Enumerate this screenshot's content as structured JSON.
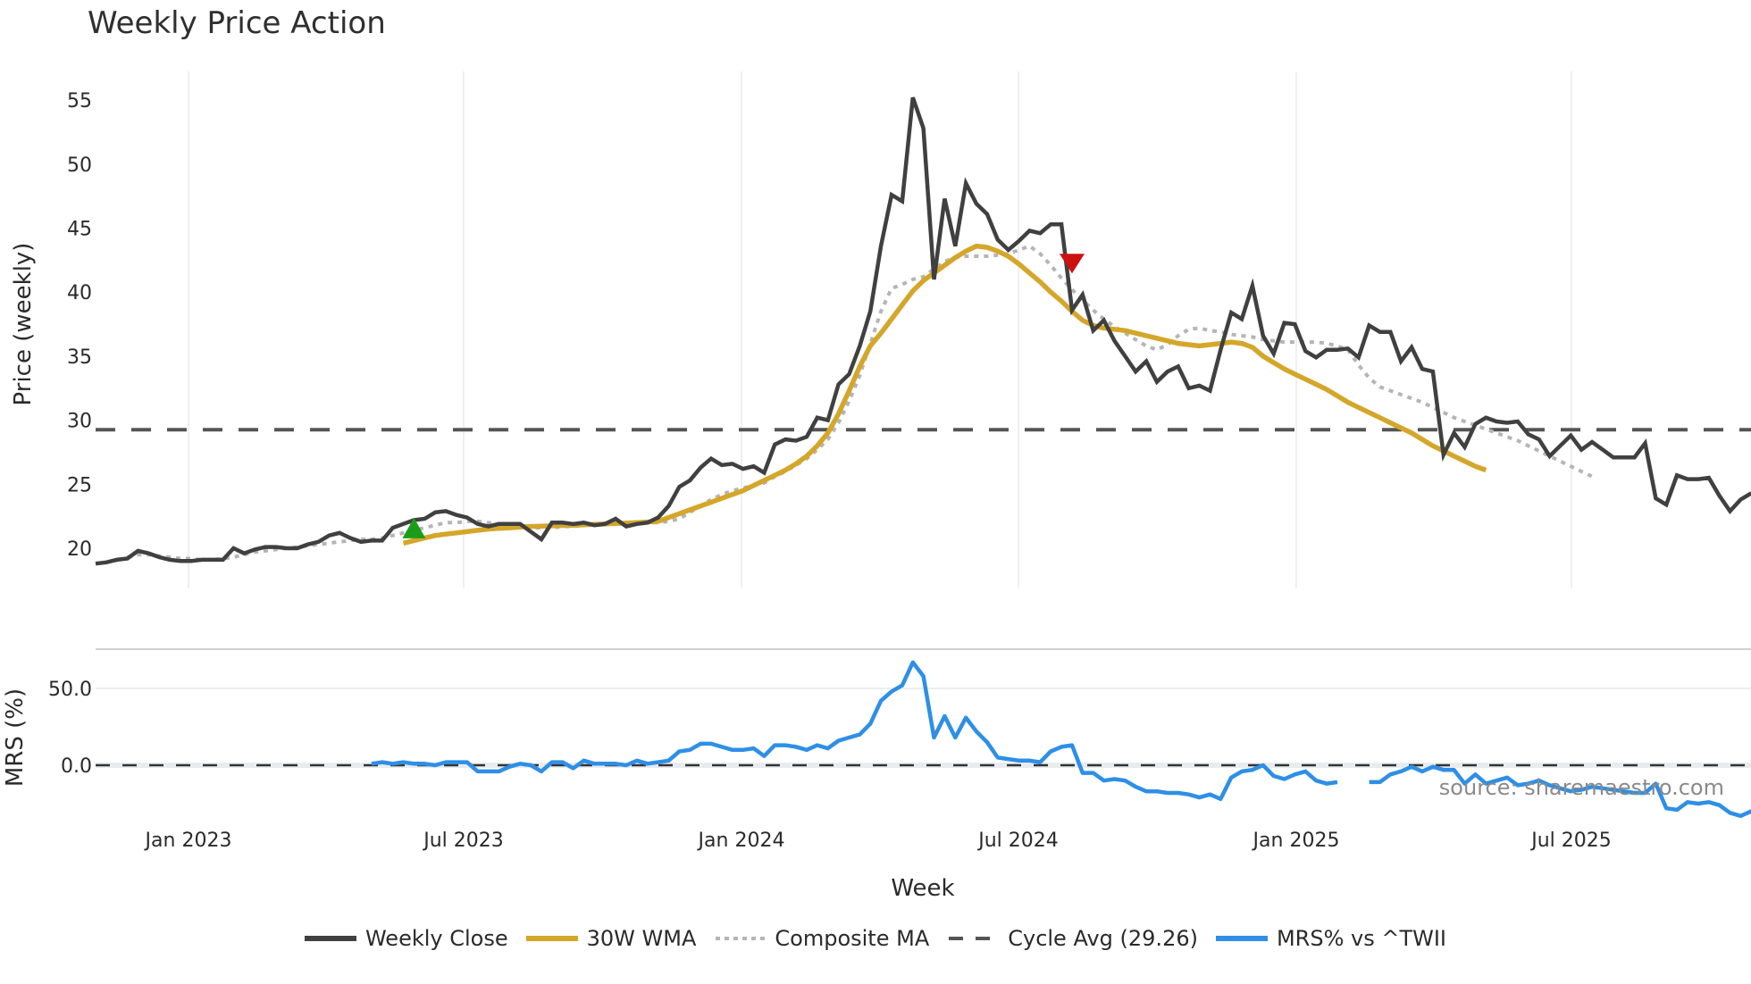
{
  "title": "Weekly Price Action",
  "legend": [
    {
      "label": "Weekly Close",
      "color": "#404040",
      "style": "solid"
    },
    {
      "label": "30W WMA",
      "color": "#d4a62a",
      "style": "solid"
    },
    {
      "label": "Composite MA",
      "color": "#b5b5b5",
      "style": "dotted"
    },
    {
      "label": "Cycle Avg (29.26)",
      "color": "#555555",
      "style": "dashed"
    },
    {
      "label": "MRS% vs ^TWII",
      "color": "#2e8fe6",
      "style": "solid"
    }
  ],
  "source_label": "source: sharemaestro.com",
  "chart_data": [
    {
      "type": "line",
      "title": "Weekly Price Action",
      "xlabel": "Week",
      "ylabel": "Price (weekly)",
      "ylim": [
        16.5,
        57
      ],
      "yticks": [
        20,
        25,
        30,
        35,
        40,
        45,
        50,
        55
      ],
      "xticks": [
        "Jan 2023",
        "Jul 2023",
        "Jan 2024",
        "Jul 2024",
        "Jan 2025",
        "Jul 2025"
      ],
      "grid": "vertical",
      "legend_position": "bottom",
      "cycle_avg": 29.26,
      "x_start_week_offset_from_jan2023": -9,
      "series": [
        {
          "name": "Weekly Close",
          "start_index": 0,
          "values": [
            18.8,
            18.9,
            19.1,
            19.2,
            19.8,
            19.6,
            19.3,
            19.1,
            19.0,
            19.0,
            19.1,
            19.1,
            19.1,
            20.0,
            19.6,
            19.9,
            20.1,
            20.1,
            20.0,
            20.0,
            20.3,
            20.5,
            21.0,
            21.2,
            20.8,
            20.5,
            20.6,
            20.6,
            21.6,
            21.9,
            22.2,
            22.3,
            22.8,
            22.9,
            22.6,
            22.4,
            21.9,
            21.7,
            21.9,
            21.9,
            21.9,
            21.3,
            20.7,
            22.0,
            22.0,
            21.9,
            22.0,
            21.8,
            21.9,
            22.3,
            21.7,
            21.9,
            22.0,
            22.4,
            23.3,
            24.8,
            25.3,
            26.3,
            27.0,
            26.5,
            26.6,
            26.2,
            26.4,
            25.9,
            28.1,
            28.5,
            28.4,
            28.7,
            30.2,
            30.0,
            32.8,
            33.6,
            35.8,
            38.5,
            43.6,
            47.6,
            47.1,
            55.2,
            52.8,
            41.0,
            47.3,
            43.6,
            48.5,
            46.9,
            46.1,
            44.1,
            43.3,
            44.0,
            44.8,
            44.6,
            45.3,
            45.3,
            38.6,
            39.8,
            37.0,
            37.8,
            36.2,
            35.0,
            33.8,
            34.6,
            33.0,
            33.8,
            34.2,
            32.5,
            32.7,
            32.3,
            35.5,
            38.4,
            37.9,
            40.5,
            36.6,
            35.2,
            37.6,
            37.5,
            35.4,
            34.9,
            35.5,
            35.5,
            35.6,
            34.9,
            37.4,
            36.9,
            36.9,
            34.6,
            35.7,
            34.0,
            33.8,
            27.3,
            29.0,
            27.9,
            29.7,
            30.2,
            29.9,
            29.8,
            29.9,
            28.9,
            28.5,
            27.2,
            28.0,
            28.8,
            27.7,
            28.3,
            27.7,
            27.1,
            27.1,
            27.1,
            28.2,
            23.9,
            23.4,
            25.7,
            25.4,
            25.4,
            25.5,
            24.1,
            22.9,
            23.8,
            24.3
          ]
        },
        {
          "name": "30W WMA",
          "start_index": 29,
          "values": [
            20.4,
            20.6,
            20.8,
            21.0,
            21.1,
            21.2,
            21.3,
            21.4,
            21.5,
            21.55,
            21.6,
            21.65,
            21.7,
            21.72,
            21.75,
            21.78,
            21.8,
            21.83,
            21.86,
            21.9,
            21.93,
            21.96,
            22.0,
            22.05,
            22.1,
            22.4,
            22.7,
            23.0,
            23.3,
            23.6,
            23.9,
            24.2,
            24.5,
            24.9,
            25.3,
            25.7,
            26.1,
            26.6,
            27.2,
            28.0,
            29.0,
            30.5,
            32.3,
            34.2,
            35.8,
            36.8,
            37.9,
            39.0,
            40.1,
            40.9,
            41.5,
            42.1,
            42.7,
            43.2,
            43.6,
            43.5,
            43.2,
            42.8,
            42.2,
            41.5,
            40.8,
            40.0,
            39.3,
            38.5,
            37.8,
            37.4,
            37.2,
            37.1,
            37.0,
            36.8,
            36.6,
            36.4,
            36.2,
            36.0,
            35.9,
            35.8,
            35.9,
            36.0,
            36.1,
            36.0,
            35.7,
            35.0,
            34.5,
            34.0,
            33.6,
            33.2,
            32.8,
            32.4,
            31.9,
            31.4,
            31.0,
            30.6,
            30.2,
            29.8,
            29.4,
            29.0,
            28.5,
            28.0,
            27.6,
            27.2,
            26.8,
            26.4,
            26.1
          ]
        },
        {
          "name": "Composite MA",
          "start_index": 3,
          "values": [
            19.3,
            19.5,
            19.5,
            19.4,
            19.3,
            19.2,
            19.2,
            19.1,
            19.1,
            19.2,
            19.3,
            19.5,
            19.7,
            19.8,
            19.9,
            20.0,
            20.1,
            20.2,
            20.3,
            20.4,
            20.5,
            20.6,
            20.7,
            20.7,
            20.8,
            21.0,
            21.2,
            21.4,
            21.6,
            21.8,
            22.0,
            22.0,
            22.1,
            22.1,
            22.0,
            21.9,
            21.8,
            21.7,
            21.6,
            21.6,
            21.6,
            21.7,
            21.7,
            21.8,
            21.9,
            21.9,
            21.9,
            22.0,
            22.0,
            22.0,
            22.0,
            22.1,
            22.3,
            22.8,
            23.3,
            23.8,
            24.2,
            24.5,
            24.7,
            24.9,
            25.1,
            25.6,
            26.0,
            26.5,
            27.0,
            27.7,
            28.5,
            29.8,
            31.5,
            33.5,
            36.0,
            38.5,
            40.3,
            40.6,
            41.0,
            41.2,
            41.8,
            42.4,
            42.7,
            42.8,
            42.8,
            42.8,
            42.9,
            43.0,
            43.3,
            43.6,
            43.0,
            42.1,
            41.1,
            40.2,
            39.4,
            38.6,
            37.9,
            37.3,
            36.8,
            36.3,
            35.8,
            35.5,
            35.9,
            36.6,
            37.1,
            37.2,
            37.0,
            36.9,
            36.7,
            36.6,
            36.5,
            36.3,
            36.2,
            36.1,
            36.1,
            36.1,
            36.1,
            36.0,
            35.8,
            35.5,
            34.3,
            33.3,
            32.6,
            32.3,
            32.0,
            31.7,
            31.4,
            31.0,
            30.6,
            30.2,
            29.9,
            29.6,
            29.3,
            29.0,
            28.7,
            28.4,
            28.0,
            27.6,
            27.2,
            26.8,
            26.4,
            26.0,
            25.6
          ]
        },
        {
          "name": "Cycle Avg (29.26)",
          "type": "hline",
          "value": 29.26
        }
      ],
      "markers": [
        {
          "type": "buy",
          "shape": "triangle-up",
          "color": "#1a9e1a",
          "index": 30,
          "value": 21.4
        },
        {
          "type": "sell",
          "shape": "triangle-down",
          "color": "#cc1111",
          "index": 92,
          "value": 42.3
        }
      ]
    },
    {
      "type": "line",
      "title": "",
      "xlabel": "Week",
      "ylabel": "MRS (%)",
      "ylim": [
        -30,
        75
      ],
      "yticks": [
        0.0,
        50.0
      ],
      "zero_line": "dashed",
      "series": [
        {
          "name": "MRS% vs ^TWII",
          "start_index": 26,
          "values": [
            1,
            2,
            1,
            2,
            1,
            1,
            0,
            2,
            2,
            2,
            -4,
            -4,
            -4,
            -1,
            1,
            0,
            -4,
            2,
            2,
            -2,
            3,
            1,
            1,
            1,
            0,
            3,
            1,
            2,
            3,
            9,
            10,
            14,
            14,
            12,
            10,
            10,
            11,
            6,
            13,
            13,
            12,
            10,
            13,
            11,
            16,
            18,
            20,
            27,
            42,
            48,
            52,
            67,
            58,
            18,
            32,
            18,
            31,
            22,
            15,
            5,
            4,
            3,
            3,
            2,
            9,
            12,
            13,
            -5,
            -5,
            -10,
            -9,
            -10,
            -14,
            -17,
            -17,
            -18,
            -18,
            -19,
            -21,
            -19,
            -22,
            -8,
            -4,
            -3,
            0,
            -7,
            -9,
            -6,
            -4,
            -10,
            -12,
            -11,
            null,
            null,
            -11,
            -11,
            -6,
            -4,
            -1,
            -4,
            -1,
            -3,
            -3,
            -12,
            -6,
            -12,
            -10,
            -8,
            -13,
            -12,
            -10,
            -13,
            -15,
            -17,
            -16,
            -14,
            -15,
            -16,
            -17,
            -18,
            -18,
            -12,
            -28,
            -29,
            -24,
            -25,
            -24,
            -26,
            -31,
            -33,
            -30,
            -28
          ]
        }
      ]
    }
  ]
}
